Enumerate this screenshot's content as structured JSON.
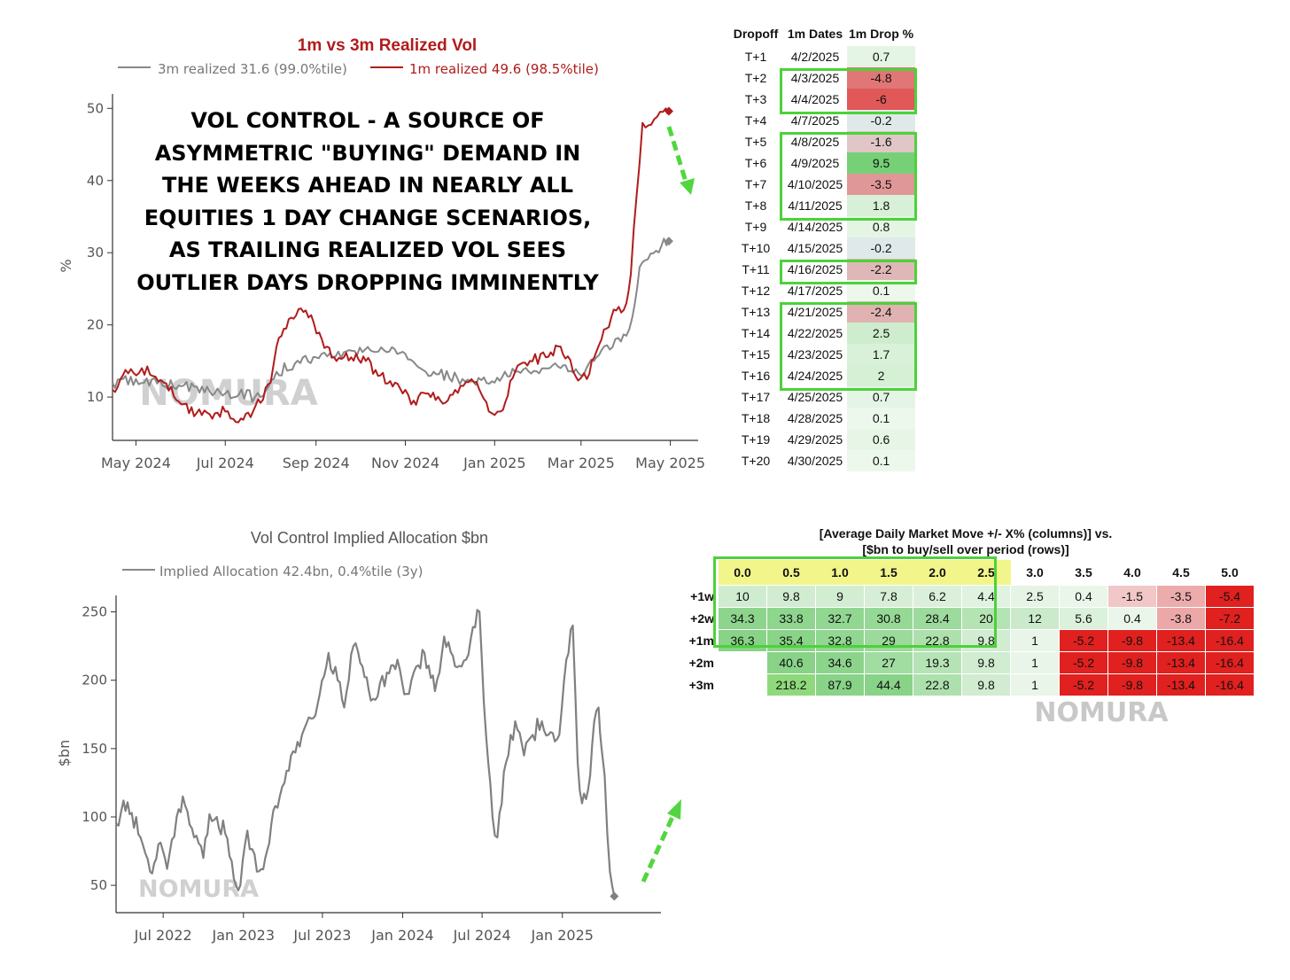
{
  "chart_data": [
    {
      "type": "line",
      "title": "1m vs 3m Realized Vol",
      "ylabel": "%",
      "ylim": [
        4,
        52
      ],
      "yticks": [
        10,
        20,
        30,
        40,
        50
      ],
      "xticks": [
        "May 2024",
        "Jul 2024",
        "Sep 2024",
        "Nov 2024",
        "Jan 2025",
        "Mar 2025",
        "May 2025"
      ],
      "xrange": [
        "2024-04-15",
        "2025-05-20"
      ],
      "legend": [
        "3m realized 31.6 (99.0%tile)",
        "1m realized 49.6 (98.5%tile)"
      ],
      "watermark": "NOMURA",
      "annotation": [
        "VOL CONTROL - A SOURCE OF",
        "ASYMMETRIC \"BUYING\" DEMAND IN",
        "THE WEEKS AHEAD IN NEARLY ALL",
        "EQUITIES 1 DAY CHANGE SCENARIOS,",
        "AS TRAILING REALIZED VOL SEES",
        "OUTLIER DAYS DROPPING IMMINENTLY"
      ],
      "series": [
        {
          "name": "3m realized",
          "color": "#888888",
          "x": [
            "2024-04-15",
            "2024-05-01",
            "2024-06-01",
            "2024-07-01",
            "2024-07-25",
            "2024-08-05",
            "2024-09-01",
            "2024-09-20",
            "2024-10-10",
            "2024-11-01",
            "2024-11-15",
            "2024-12-10",
            "2025-01-01",
            "2025-01-15",
            "2025-02-15",
            "2025-03-01",
            "2025-03-15",
            "2025-04-01",
            "2025-04-05",
            "2025-04-10",
            "2025-04-25",
            "2025-04-30"
          ],
          "values": [
            12,
            12.5,
            11.5,
            10.5,
            10,
            13.5,
            15.5,
            16.2,
            16.3,
            16,
            13.5,
            12.5,
            12,
            13.5,
            14,
            13,
            16.5,
            18.5,
            21,
            28,
            31,
            31.6
          ]
        },
        {
          "name": "1m realized",
          "color": "#b11b1b",
          "x": [
            "2024-04-15",
            "2024-04-22",
            "2024-05-05",
            "2024-05-20",
            "2024-06-01",
            "2024-06-15",
            "2024-07-01",
            "2024-07-10",
            "2024-07-20",
            "2024-08-01",
            "2024-08-05",
            "2024-08-15",
            "2024-08-25",
            "2024-09-05",
            "2024-09-15",
            "2024-09-25",
            "2024-10-05",
            "2024-10-15",
            "2024-10-25",
            "2024-11-01",
            "2024-11-05",
            "2024-11-15",
            "2024-11-25",
            "2024-12-05",
            "2024-12-18",
            "2024-12-28",
            "2025-01-05",
            "2025-01-15",
            "2025-01-25",
            "2025-02-05",
            "2025-02-15",
            "2025-02-25",
            "2025-03-05",
            "2025-03-15",
            "2025-03-25",
            "2025-04-01",
            "2025-04-04",
            "2025-04-08",
            "2025-04-12",
            "2025-04-20",
            "2025-04-28",
            "2025-04-30"
          ],
          "values": [
            11,
            13,
            14,
            12,
            9,
            7.5,
            8,
            6.5,
            8,
            12,
            17,
            21,
            22,
            18,
            15,
            15.5,
            15,
            13,
            12,
            11,
            9,
            10.5,
            9.5,
            11,
            12,
            8,
            8,
            13.5,
            15,
            15.5,
            17,
            13,
            12.5,
            18,
            22,
            23,
            27,
            38,
            48,
            48.5,
            50,
            49.6
          ]
        }
      ]
    },
    {
      "type": "line",
      "title": "Vol Control Implied Allocation $bn",
      "ylabel": "$bn",
      "ylim": [
        30,
        262
      ],
      "yticks": [
        50,
        100,
        150,
        200,
        250
      ],
      "xticks": [
        "Jul 2022",
        "Jan 2023",
        "Jul 2023",
        "Jan 2024",
        "Jul 2024",
        "Jan 2025"
      ],
      "xrange": [
        "2022-03-15",
        "2025-08-15"
      ],
      "legend": [
        "Implied Allocation 42.4bn, 0.4%tile (3y)"
      ],
      "watermark": "NOMURA",
      "series": [
        {
          "name": "Implied Allocation",
          "color": "#808080",
          "x": [
            "2022-03-15",
            "2022-04-01",
            "2022-04-20",
            "2022-05-10",
            "2022-06-01",
            "2022-06-20",
            "2022-07-10",
            "2022-08-01",
            "2022-08-15",
            "2022-09-10",
            "2022-10-01",
            "2022-10-15",
            "2022-11-01",
            "2022-11-20",
            "2022-12-10",
            "2022-12-25",
            "2023-01-10",
            "2023-02-01",
            "2023-02-20",
            "2023-03-15",
            "2023-04-05",
            "2023-04-25",
            "2023-05-15",
            "2023-06-05",
            "2023-06-25",
            "2023-07-15",
            "2023-08-05",
            "2023-08-20",
            "2023-09-10",
            "2023-10-01",
            "2023-10-20",
            "2023-11-10",
            "2023-12-01",
            "2023-12-20",
            "2024-01-10",
            "2024-02-01",
            "2024-02-20",
            "2024-03-15",
            "2024-04-05",
            "2024-04-25",
            "2024-05-15",
            "2024-06-05",
            "2024-06-25",
            "2024-07-10",
            "2024-07-25",
            "2024-08-05",
            "2024-08-25",
            "2024-09-15",
            "2024-10-05",
            "2024-10-25",
            "2024-11-15",
            "2024-12-05",
            "2024-12-25",
            "2025-01-10",
            "2025-01-25",
            "2025-02-05",
            "2025-02-15",
            "2025-03-01",
            "2025-03-15",
            "2025-03-25",
            "2025-04-01",
            "2025-04-08",
            "2025-04-20",
            "2025-04-30"
          ],
          "values": [
            95,
            112,
            103,
            85,
            60,
            80,
            62,
            100,
            115,
            85,
            70,
            102,
            100,
            88,
            55,
            50,
            90,
            60,
            70,
            108,
            125,
            148,
            160,
            172,
            190,
            220,
            200,
            180,
            225,
            210,
            185,
            198,
            205,
            215,
            190,
            210,
            220,
            192,
            232,
            218,
            210,
            230,
            250,
            160,
            100,
            85,
            140,
            170,
            145,
            160,
            170,
            162,
            160,
            215,
            240,
            140,
            110,
            120,
            170,
            180,
            150,
            130,
            60,
            42
          ]
        }
      ]
    }
  ],
  "dropoff_table": {
    "headers": [
      "Dropoff",
      "1m Dates",
      "1m Drop %"
    ],
    "rows": [
      [
        "T+1",
        "4/2/2025",
        "0.7"
      ],
      [
        "T+2",
        "4/3/2025",
        "-4.8"
      ],
      [
        "T+3",
        "4/4/2025",
        "-6"
      ],
      [
        "T+4",
        "4/7/2025",
        "-0.2"
      ],
      [
        "T+5",
        "4/8/2025",
        "-1.6"
      ],
      [
        "T+6",
        "4/9/2025",
        "9.5"
      ],
      [
        "T+7",
        "4/10/2025",
        "-3.5"
      ],
      [
        "T+8",
        "4/11/2025",
        "1.8"
      ],
      [
        "T+9",
        "4/14/2025",
        "0.8"
      ],
      [
        "T+10",
        "4/15/2025",
        "-0.2"
      ],
      [
        "T+11",
        "4/16/2025",
        "-2.2"
      ],
      [
        "T+12",
        "4/17/2025",
        "0.1"
      ],
      [
        "T+13",
        "4/21/2025",
        "-2.4"
      ],
      [
        "T+14",
        "4/22/2025",
        "2.5"
      ],
      [
        "T+15",
        "4/23/2025",
        "1.7"
      ],
      [
        "T+16",
        "4/24/2025",
        "2"
      ],
      [
        "T+17",
        "4/25/2025",
        "0.7"
      ],
      [
        "T+18",
        "4/28/2025",
        "0.1"
      ],
      [
        "T+19",
        "4/29/2025",
        "0.6"
      ],
      [
        "T+20",
        "4/30/2025",
        "0.1"
      ]
    ]
  },
  "scenario_table": {
    "title_line1": "[Average Daily Market Move +/- X% (columns)] vs.",
    "title_line2": "[$bn to buy/sell over period (rows)]",
    "columns": [
      "0.0",
      "0.5",
      "1.0",
      "1.5",
      "2.0",
      "2.5",
      "3.0",
      "3.5",
      "4.0",
      "4.5",
      "5.0"
    ],
    "rows": [
      {
        "label": "+1w",
        "values": [
          "10",
          "9.8",
          "9",
          "7.8",
          "6.2",
          "4.4",
          "2.5",
          "0.4",
          "-1.5",
          "-3.5",
          "-5.4"
        ]
      },
      {
        "label": "+2w",
        "values": [
          "34.3",
          "33.8",
          "32.7",
          "30.8",
          "28.4",
          "20",
          "12",
          "5.6",
          "0.4",
          "-3.8",
          "-7.2"
        ]
      },
      {
        "label": "+1m",
        "values": [
          "36.3",
          "35.4",
          "32.8",
          "29",
          "22.8",
          "9.8",
          "1",
          "-5.2",
          "-9.8",
          "-13.4",
          "-16.4"
        ]
      },
      {
        "label": "+2m",
        "values": [
          "",
          "40.6",
          "34.6",
          "27",
          "19.3",
          "9.8",
          "1",
          "-5.2",
          "-9.8",
          "-13.4",
          "-16.4"
        ]
      },
      {
        "label": "+3m",
        "values": [
          "",
          "218.2",
          "87.9",
          "44.4",
          "22.8",
          "9.8",
          "1",
          "-5.2",
          "-9.8",
          "-13.4",
          "-16.4"
        ]
      }
    ],
    "watermark": "NOMURA"
  },
  "colors": {
    "highlight_border": "#4cd23a",
    "arrow": "#52d63f",
    "header_yellow": "#f2f58a",
    "line_red": "#b11b1b",
    "line_gray": "#888888"
  }
}
